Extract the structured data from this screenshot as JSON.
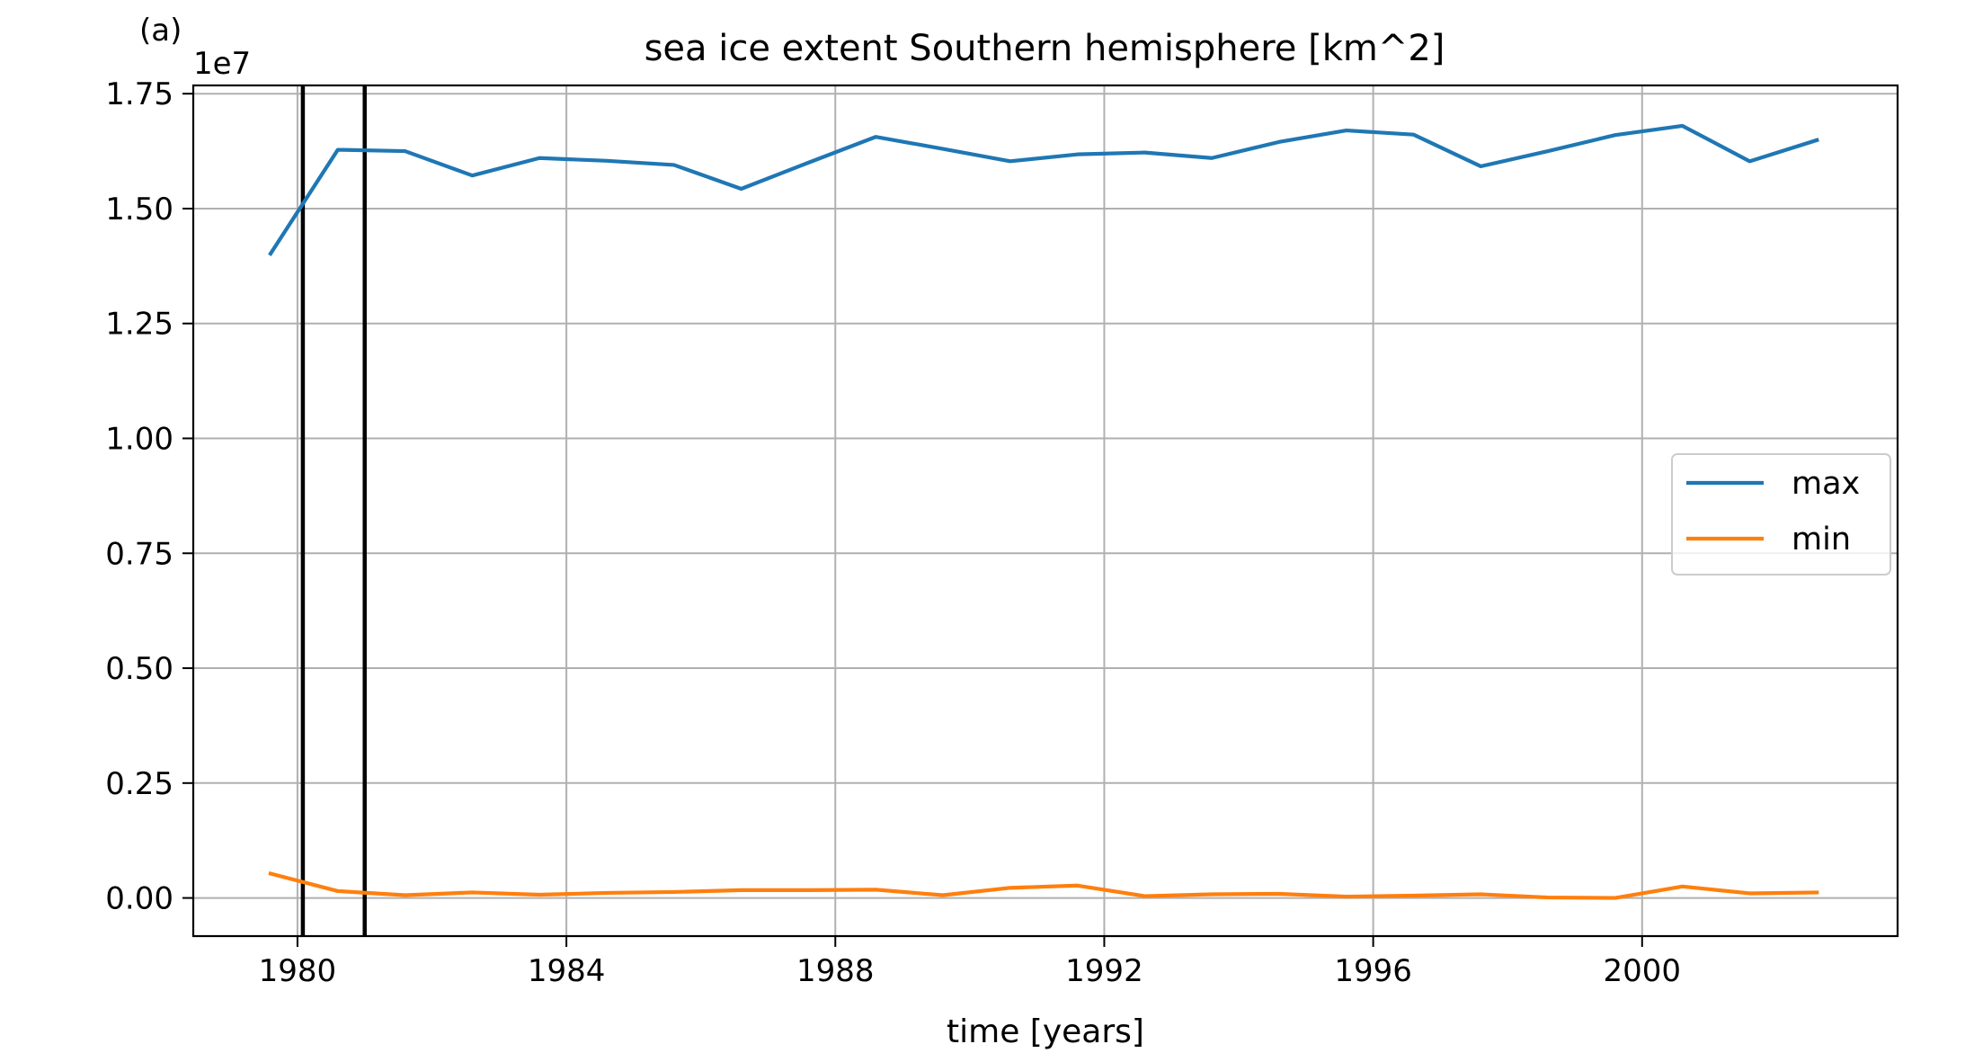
{
  "panel_label": "(a)",
  "chart_data": {
    "type": "line",
    "title": "sea ice extent Southern hemisphere [km^2]",
    "xlabel": "time [years]",
    "ylabel": "",
    "y_offset_label": "1e7",
    "x_ticks": [
      "1980",
      "1984",
      "1988",
      "1992",
      "1996",
      "2000"
    ],
    "x_tick_values": [
      1980,
      1984,
      1988,
      1992,
      1996,
      2000
    ],
    "y_ticks": [
      "0.00",
      "0.25",
      "0.50",
      "0.75",
      "1.00",
      "1.25",
      "1.50",
      "1.75"
    ],
    "y_tick_values": [
      0,
      0.25,
      0.5,
      0.75,
      1.0,
      1.25,
      1.5,
      1.75
    ],
    "xlim": [
      1978.45,
      2003.8
    ],
    "ylim": [
      -0.083,
      1.768
    ],
    "grid": true,
    "legend_position": "center-right",
    "vertical_lines": [
      1980.08,
      1981.0
    ],
    "x": [
      1979.6,
      1980.6,
      1981.6,
      1982.6,
      1983.6,
      1984.6,
      1985.6,
      1986.6,
      1987.6,
      1988.6,
      1989.6,
      1990.6,
      1991.6,
      1992.6,
      1993.6,
      1994.6,
      1995.6,
      1996.6,
      1997.6,
      1998.6,
      1999.6,
      2000.6,
      2001.6,
      2002.6
    ],
    "series": [
      {
        "name": "max",
        "color": "#1f77b4",
        "values": [
          1.402,
          1.628,
          1.625,
          1.572,
          1.61,
          1.604,
          1.595,
          1.543,
          1.6,
          1.656,
          1.63,
          1.603,
          1.618,
          1.622,
          1.61,
          1.645,
          1.67,
          1.661,
          1.592,
          1.625,
          1.66,
          1.68,
          1.603,
          1.649
        ]
      },
      {
        "name": "min",
        "color": "#ff7f0e",
        "values": [
          0.053,
          0.015,
          0.006,
          0.012,
          0.007,
          0.011,
          0.013,
          0.017,
          0.017,
          0.018,
          0.006,
          0.022,
          0.027,
          0.004,
          0.008,
          0.009,
          0.003,
          0.005,
          0.008,
          0.001,
          0.0,
          0.025,
          0.01,
          0.012
        ]
      }
    ]
  }
}
